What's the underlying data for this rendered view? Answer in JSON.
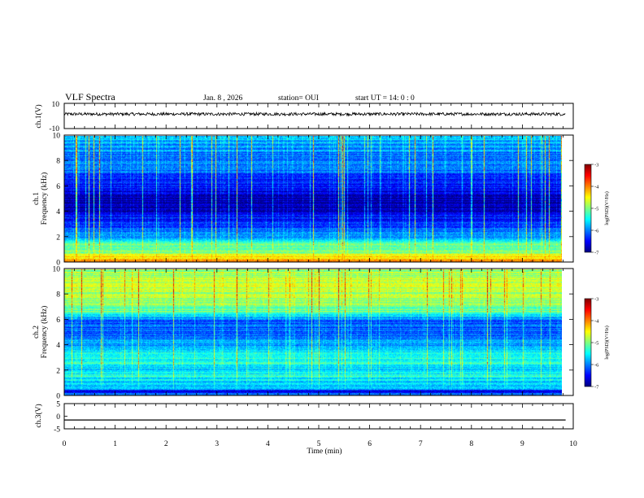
{
  "header": {
    "title": "VLF Spectra",
    "date": "Jan. 8 , 2026",
    "station": "station= OUI",
    "start": "start  UT =   14: 0  : 0"
  },
  "colorbar": {
    "label": "log(PSD)(V²/Hz)",
    "ticks": [
      "-3",
      "-4",
      "-5",
      "-6",
      "-7"
    ],
    "colors": [
      "#7f0000",
      "#ff0000",
      "#ff7f00",
      "#ffff00",
      "#7fff7f",
      "#00ffff",
      "#007fff",
      "#0000ff",
      "#00007f"
    ]
  },
  "chart_data": [
    {
      "type": "line",
      "name": "ch1-waveform",
      "ylabel": "ch.1(V)",
      "ylim": [
        -10,
        10
      ],
      "yticks": [
        "10",
        "-10"
      ],
      "xlim": [
        0,
        10
      ],
      "baseline": 1.5,
      "amplitude": 1.2
    },
    {
      "type": "heatmap",
      "name": "ch1-spectrogram",
      "ylabel_line1": "ch.1",
      "ylabel_line2": "Frequency (kHz)",
      "ylim": [
        0,
        10
      ],
      "yticks": [
        "0",
        "2",
        "4",
        "6",
        "8",
        "10"
      ],
      "xlim": [
        0,
        9.85
      ],
      "zlim": [
        -7,
        -3
      ],
      "frequency_profile_kHz": [
        0,
        0.25,
        0.5,
        0.8,
        1.2,
        1.5,
        1.8,
        2.2,
        2.8,
        3.5,
        4.2,
        4.8,
        5.5,
        6.5,
        7.5,
        8.5,
        10
      ],
      "frequency_profile_logpsd": [
        -3.9,
        -4.6,
        -4.4,
        -5.2,
        -5.0,
        -5.1,
        -5.7,
        -6.0,
        -6.2,
        -6.5,
        -6.8,
        -6.9,
        -6.6,
        -6.4,
        -6.1,
        -6.0,
        -5.7
      ]
    },
    {
      "type": "heatmap",
      "name": "ch2-spectrogram",
      "ylabel_line1": "ch.2",
      "ylabel_line2": "Frequency (kHz)",
      "ylim": [
        0,
        10
      ],
      "yticks": [
        "0",
        "2",
        "4",
        "6",
        "8",
        "10"
      ],
      "xlim": [
        0,
        9.85
      ],
      "zlim": [
        -7,
        -3
      ],
      "frequency_profile_kHz": [
        0,
        0.3,
        0.6,
        1.0,
        1.5,
        2.0,
        2.6,
        3.0,
        3.5,
        4.2,
        5.0,
        6.0,
        6.6,
        7.5,
        8.5,
        10
      ],
      "frequency_profile_logpsd": [
        -6.0,
        -6.6,
        -5.5,
        -5.8,
        -5.4,
        -5.7,
        -5.4,
        -5.5,
        -5.6,
        -5.9,
        -6.2,
        -6.1,
        -5.2,
        -4.9,
        -4.8,
        -4.9
      ]
    },
    {
      "type": "line",
      "name": "ch3-waveform",
      "ylabel": "ch.3(V)",
      "ylim": [
        -5,
        5
      ],
      "yticks": [
        "5",
        "0",
        "-5"
      ],
      "xlim": [
        0,
        10
      ],
      "baseline": -1.5,
      "amplitude": 0
    }
  ],
  "xaxis": {
    "label": "Time (min)",
    "ticks": [
      "0",
      "1",
      "2",
      "3",
      "4",
      "5",
      "6",
      "7",
      "8",
      "9",
      "10"
    ]
  }
}
